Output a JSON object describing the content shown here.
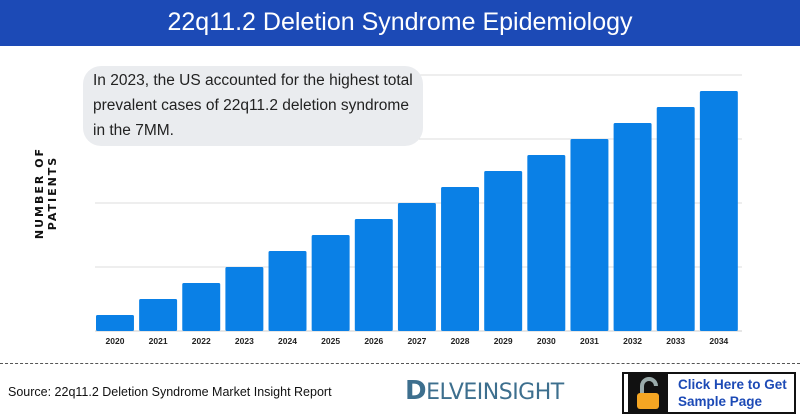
{
  "header": {
    "title": "22q11.2 Deletion Syndrome Epidemiology"
  },
  "note": "In 2023, the US accounted for the highest total prevalent cases of 22q11.2 deletion syndrome in the 7MM.",
  "footer": {
    "source": "Source: 22q11.2 Deletion Syndrome Market Insight Report",
    "logo": "DELVEINSIGHT",
    "cta_line1": "Click Here to Get",
    "cta_line2": "Sample Page"
  },
  "colors": {
    "bar": "#0a80e6",
    "header": "#1c4ab6",
    "lock": "#f5a623"
  },
  "chart_data": {
    "type": "bar",
    "title": "22q11.2 Deletion Syndrome Epidemiology",
    "xlabel": "",
    "ylabel": "NUMBER OF PATIENTS",
    "categories": [
      "2020",
      "2021",
      "2022",
      "2023",
      "2024",
      "2025",
      "2026",
      "2027",
      "2028",
      "2029",
      "2030",
      "2031",
      "2032",
      "2033",
      "2034"
    ],
    "values": [
      1,
      2,
      3,
      4,
      5,
      6,
      7,
      8,
      9,
      10,
      11,
      12,
      13,
      14,
      15
    ],
    "ylim": [
      0,
      16
    ],
    "grid": true,
    "note": "relative values; no y-axis tick labels shown"
  }
}
